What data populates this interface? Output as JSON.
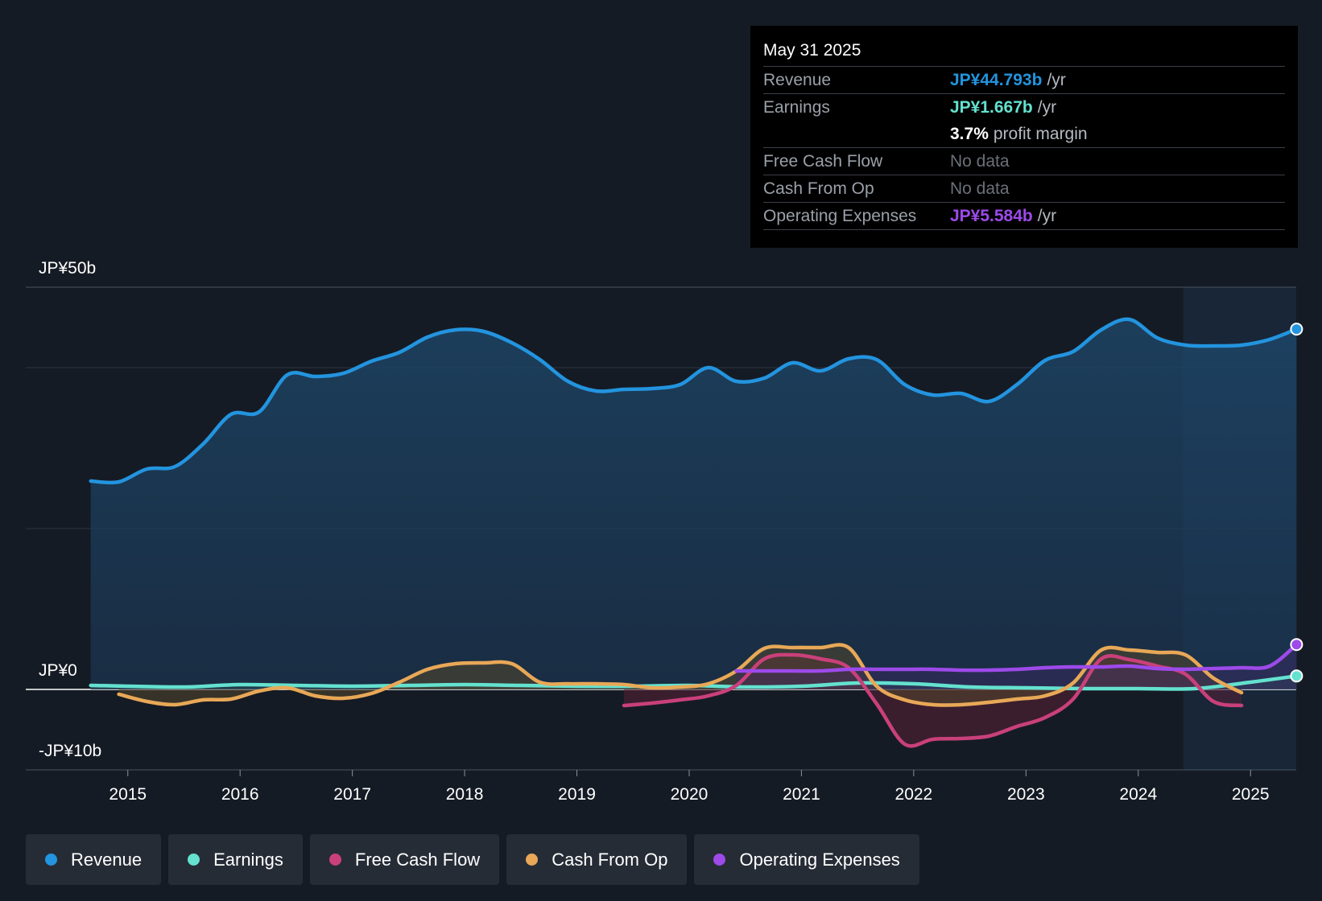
{
  "tooltip": {
    "date": "May 31 2025",
    "rows": {
      "revenue": {
        "label": "Revenue",
        "value": "JP¥44.793b",
        "unit": "/yr"
      },
      "earnings": {
        "label": "Earnings",
        "value": "JP¥1.667b",
        "unit": "/yr"
      },
      "margin": {
        "value": "3.7%",
        "unit": "profit margin"
      },
      "fcf": {
        "label": "Free Cash Flow",
        "value": "No data"
      },
      "cfo": {
        "label": "Cash From Op",
        "value": "No data"
      },
      "opex": {
        "label": "Operating Expenses",
        "value": "JP¥5.584b",
        "unit": "/yr"
      }
    }
  },
  "legend": {
    "revenue": "Revenue",
    "earnings": "Earnings",
    "fcf": "Free Cash Flow",
    "cfo": "Cash From Op",
    "opex": "Operating Expenses"
  },
  "colors": {
    "revenue": "#2394df",
    "earnings": "#64e1cf",
    "fcf": "#c9407a",
    "cfo": "#e8a857",
    "opex": "#9d4ae9",
    "background": "#151b24"
  },
  "chart_data": {
    "type": "line",
    "title": "",
    "y_label_top": "JP¥50b",
    "y_label_zero": "JP¥0",
    "y_label_bottom": "-JP¥10b",
    "ylim": [
      -10,
      50
    ],
    "xlim": [
      2014.55,
      2025.4
    ],
    "grid": true,
    "forecast_shade_start": 2024.4,
    "x_ticks": [
      2015,
      2016,
      2017,
      2018,
      2019,
      2020,
      2021,
      2022,
      2023,
      2024,
      2025
    ],
    "x_tick_labels": [
      "2015",
      "2016",
      "2017",
      "2018",
      "2019",
      "2020",
      "2021",
      "2022",
      "2023",
      "2024",
      "2025"
    ],
    "series": [
      {
        "name": "Revenue",
        "key": "revenue",
        "x": [
          2014.67,
          2014.92,
          2015.17,
          2015.42,
          2015.67,
          2015.92,
          2016.17,
          2016.42,
          2016.67,
          2016.92,
          2017.17,
          2017.42,
          2017.67,
          2017.92,
          2018.17,
          2018.42,
          2018.67,
          2018.92,
          2019.17,
          2019.42,
          2019.67,
          2019.92,
          2020.17,
          2020.42,
          2020.67,
          2020.92,
          2021.17,
          2021.42,
          2021.67,
          2021.92,
          2022.17,
          2022.42,
          2022.67,
          2022.92,
          2023.17,
          2023.42,
          2023.67,
          2023.92,
          2024.17,
          2024.42,
          2024.67,
          2024.92,
          2025.17,
          2025.41
        ],
        "y": [
          25.9,
          25.8,
          27.4,
          27.7,
          30.5,
          34.2,
          34.5,
          39.1,
          38.9,
          39.3,
          40.8,
          41.9,
          43.8,
          44.7,
          44.5,
          43.1,
          41.0,
          38.3,
          37.1,
          37.3,
          37.4,
          37.9,
          40.0,
          38.3,
          38.7,
          40.6,
          39.6,
          41.1,
          41.0,
          37.9,
          36.6,
          36.8,
          35.8,
          37.9,
          40.9,
          42.0,
          44.7,
          46.0,
          43.7,
          42.8,
          42.7,
          42.8,
          43.5,
          44.79
        ]
      },
      {
        "name": "Earnings",
        "key": "earnings",
        "x": [
          2014.67,
          2015.0,
          2015.5,
          2016.0,
          2016.5,
          2017.0,
          2017.5,
          2018.0,
          2018.5,
          2019.0,
          2019.5,
          2020.0,
          2020.5,
          2021.0,
          2021.5,
          2022.0,
          2022.5,
          2023.0,
          2023.5,
          2024.0,
          2024.5,
          2025.0,
          2025.41
        ],
        "y": [
          0.5,
          0.4,
          0.3,
          0.6,
          0.5,
          0.4,
          0.5,
          0.6,
          0.5,
          0.4,
          0.4,
          0.5,
          0.3,
          0.4,
          0.8,
          0.7,
          0.3,
          0.2,
          0.1,
          0.1,
          0.1,
          0.9,
          1.67
        ]
      },
      {
        "name": "Free Cash Flow",
        "key": "fcf",
        "x": [
          2019.42,
          2019.67,
          2019.92,
          2020.17,
          2020.42,
          2020.67,
          2020.92,
          2021.17,
          2021.42,
          2021.67,
          2021.92,
          2022.17,
          2022.42,
          2022.67,
          2022.92,
          2023.17,
          2023.42,
          2023.67,
          2023.92,
          2024.17,
          2024.42,
          2024.67,
          2024.92
        ],
        "y": [
          -2.0,
          -1.7,
          -1.3,
          -0.8,
          0.5,
          3.8,
          4.3,
          3.8,
          2.7,
          -1.8,
          -6.8,
          -6.2,
          -6.1,
          -5.8,
          -4.6,
          -3.5,
          -1.2,
          3.8,
          3.7,
          2.9,
          1.9,
          -1.5,
          -2.0
        ]
      },
      {
        "name": "Cash From Op",
        "key": "cfo",
        "x": [
          2014.92,
          2015.17,
          2015.42,
          2015.67,
          2015.92,
          2016.17,
          2016.42,
          2016.67,
          2016.92,
          2017.17,
          2017.42,
          2017.67,
          2017.92,
          2018.17,
          2018.42,
          2018.67,
          2018.92,
          2019.17,
          2019.42,
          2019.67,
          2019.92,
          2020.17,
          2020.42,
          2020.67,
          2020.92,
          2021.17,
          2021.42,
          2021.67,
          2021.92,
          2022.17,
          2022.42,
          2022.67,
          2022.92,
          2023.17,
          2023.42,
          2023.67,
          2023.92,
          2024.17,
          2024.42,
          2024.67,
          2024.92
        ],
        "y": [
          -0.6,
          -1.5,
          -1.9,
          -1.3,
          -1.2,
          -0.2,
          0.2,
          -0.8,
          -1.1,
          -0.5,
          0.9,
          2.5,
          3.2,
          3.3,
          3.2,
          0.9,
          0.7,
          0.7,
          0.6,
          0.2,
          0.3,
          0.7,
          2.3,
          5.1,
          5.2,
          5.2,
          5.2,
          0.4,
          -1.3,
          -1.9,
          -1.9,
          -1.6,
          -1.2,
          -0.8,
          0.8,
          4.9,
          4.9,
          4.6,
          4.3,
          1.4,
          -0.4
        ]
      },
      {
        "name": "Operating Expenses",
        "key": "opex",
        "x": [
          2020.42,
          2020.67,
          2020.92,
          2021.17,
          2021.42,
          2021.67,
          2021.92,
          2022.17,
          2022.42,
          2022.67,
          2022.92,
          2023.17,
          2023.42,
          2023.67,
          2023.92,
          2024.17,
          2024.42,
          2024.67,
          2024.92,
          2025.17,
          2025.41
        ],
        "y": [
          2.3,
          2.3,
          2.3,
          2.3,
          2.5,
          2.5,
          2.5,
          2.5,
          2.4,
          2.4,
          2.5,
          2.7,
          2.8,
          2.8,
          2.9,
          2.6,
          2.5,
          2.6,
          2.7,
          2.9,
          5.58
        ]
      }
    ]
  }
}
